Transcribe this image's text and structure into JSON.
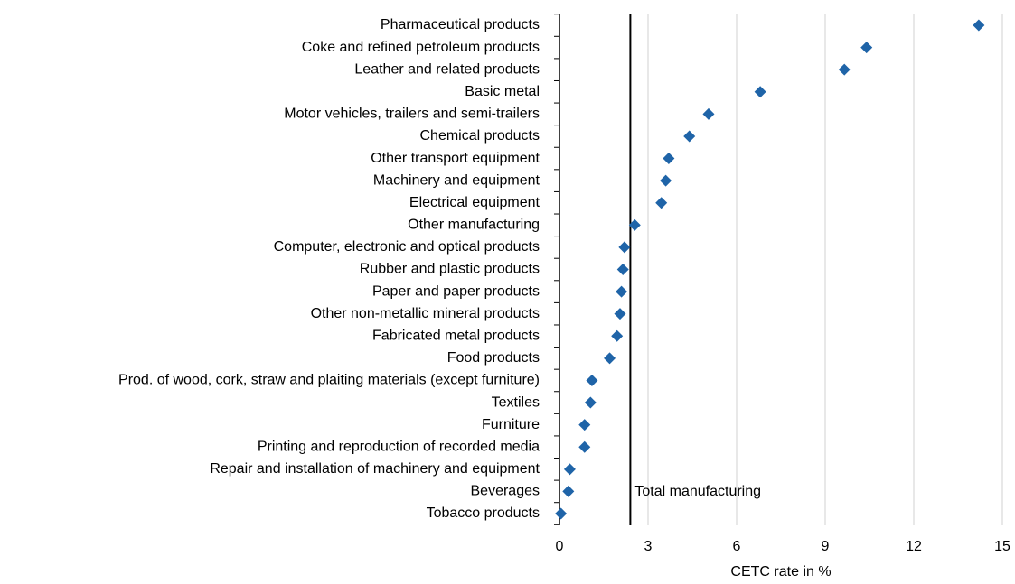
{
  "chart_data": {
    "type": "dot",
    "categories": [
      "Pharmaceutical products",
      "Coke and refined petroleum products",
      "Leather and related products",
      "Basic metal",
      "Motor vehicles, trailers and semi-trailers",
      "Chemical products",
      "Other transport equipment",
      "Machinery and equipment",
      "Electrical equipment",
      "Other manufacturing",
      "Computer, electronic and optical products",
      "Rubber and plastic products",
      "Paper and paper products",
      "Other non-metallic mineral products",
      "Fabricated metal products",
      "Food products",
      "Prod. of wood, cork, straw and plaiting materials (except furniture)",
      "Textiles",
      "Furniture",
      "Printing and reproduction of recorded media",
      "Repair and installation of machinery and equipment",
      "Beverages",
      "Tobacco products"
    ],
    "values": [
      14.2,
      10.4,
      9.65,
      6.8,
      5.05,
      4.4,
      3.7,
      3.6,
      3.45,
      2.55,
      2.2,
      2.15,
      2.1,
      2.05,
      1.95,
      1.7,
      1.1,
      1.05,
      0.85,
      0.85,
      0.35,
      0.3,
      0.05
    ],
    "color": "#1f64a8",
    "xlabel": "CETC rate in %",
    "xlim": [
      0,
      15
    ],
    "xticks": [
      0,
      3,
      6,
      9,
      12,
      15
    ],
    "grid": true,
    "reference_line": {
      "value": 2.4,
      "label": "Total manufacturing"
    }
  }
}
